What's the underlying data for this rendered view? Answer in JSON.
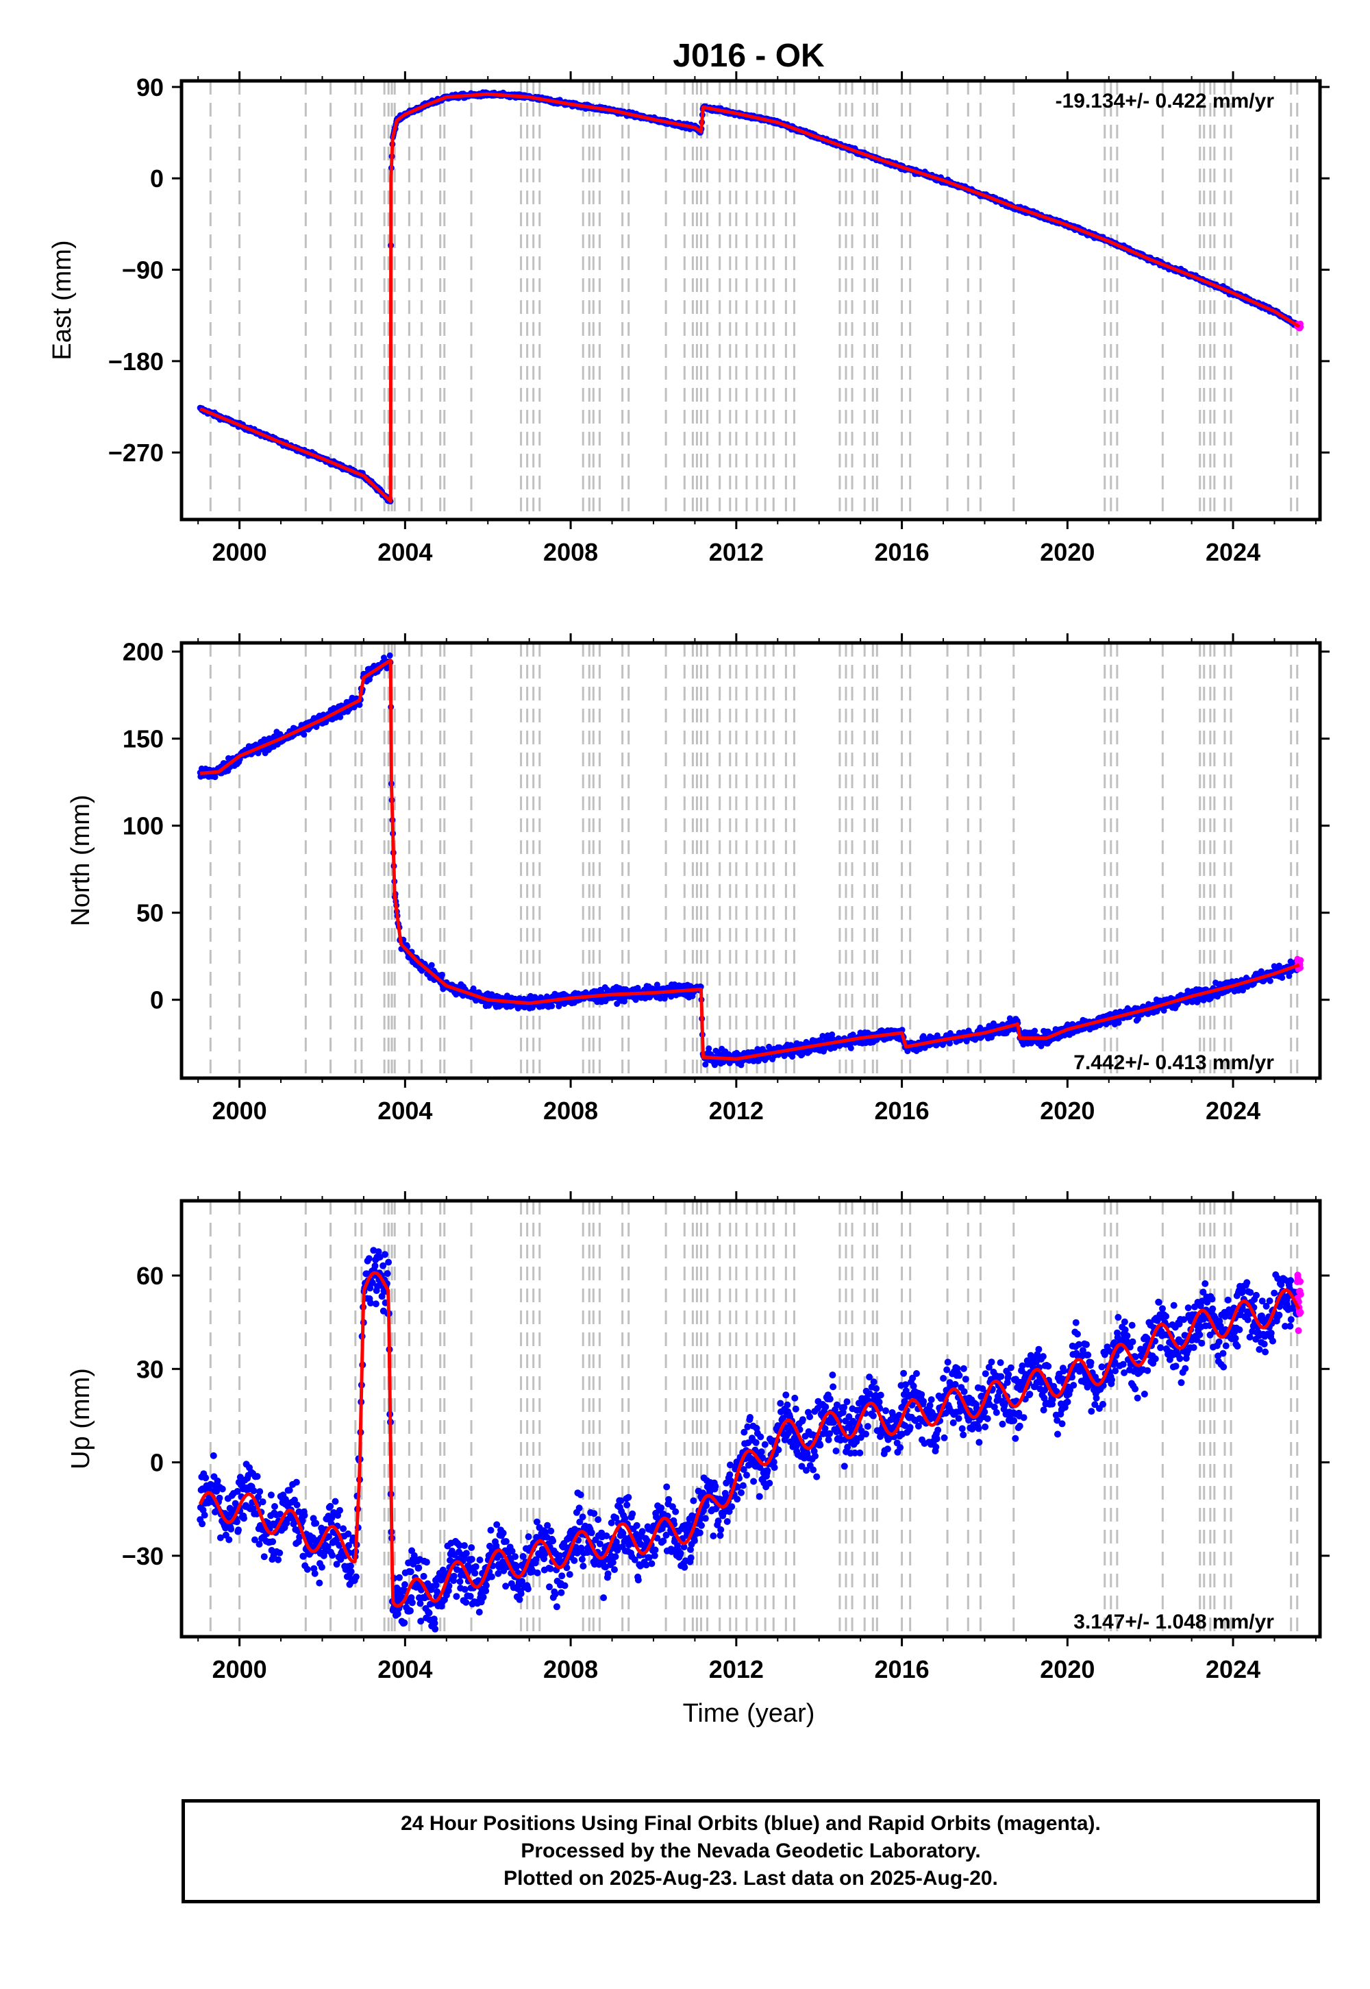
{
  "title": "J016 - OK",
  "xlabel": "Time (year)",
  "footer": {
    "line1": "24 Hour Positions Using Final Orbits (blue) and Rapid Orbits (magenta).",
    "line2": "Processed by the Nevada Geodetic Laboratory.",
    "line3": "Plotted on 2025-Aug-23. Last data on 2025-Aug-20."
  },
  "colors": {
    "final_orbits": "#0000ff",
    "rapid_orbits": "#ff00ff",
    "model": "#ff0000",
    "event_lines": "#c0c0c0"
  },
  "chart_data": [
    {
      "type": "scatter",
      "component": "east",
      "ylabel": "East (mm)",
      "rate_text": "-19.134+/- 0.422 mm/yr",
      "xlim": [
        1998.6,
        2026.1
      ],
      "ylim": [
        -336,
        96
      ],
      "xticks": [
        2000,
        2004,
        2008,
        2012,
        2016,
        2020,
        2024
      ],
      "yticks": [
        90,
        0,
        -90,
        -180,
        -270
      ],
      "grid": false,
      "series": [
        {
          "role": "model",
          "type": "line",
          "color": "#ff0000",
          "x": [
            1999.05,
            2000.0,
            2001.0,
            2002.0,
            2003.0,
            2003.65,
            2003.66,
            2003.7,
            2003.8,
            2004.0,
            2004.5,
            2005.0,
            2006.0,
            2007.0,
            2008.0,
            2009.0,
            2010.0,
            2011.0,
            2011.15,
            2011.2,
            2012.0,
            2013.0,
            2014.0,
            2015.0,
            2016.0,
            2017.0,
            2018.0,
            2018.7,
            2019.0,
            2020.0,
            2021.0,
            2022.0,
            2023.0,
            2024.0,
            2025.0,
            2025.6
          ],
          "y": [
            -227,
            -243,
            -260,
            -276,
            -293,
            -318,
            0,
            40,
            57,
            63,
            72,
            80,
            83,
            80,
            73,
            67,
            58,
            50,
            46,
            70,
            64,
            55,
            40,
            25,
            11,
            -2,
            -17,
            -28,
            -32,
            -46,
            -62,
            -80,
            -96,
            -113,
            -131,
            -146
          ]
        }
      ]
    },
    {
      "type": "scatter",
      "component": "north",
      "ylabel": "North (mm)",
      "rate_text": "7.442+/- 0.413 mm/yr",
      "xlim": [
        1998.6,
        2026.1
      ],
      "ylim": [
        -45,
        205
      ],
      "xticks": [
        2000,
        2004,
        2008,
        2012,
        2016,
        2020,
        2024
      ],
      "yticks": [
        200,
        150,
        100,
        50,
        0
      ],
      "grid": false,
      "series": [
        {
          "role": "model",
          "type": "line",
          "color": "#ff0000",
          "x": [
            1999.05,
            1999.5,
            2000.0,
            2001.0,
            2002.0,
            2002.9,
            2003.0,
            2003.65,
            2003.67,
            2003.75,
            2003.9,
            2004.3,
            2005.0,
            2006.0,
            2007.0,
            2008.0,
            2009.0,
            2010.0,
            2011.15,
            2011.2,
            2012.0,
            2013.0,
            2014.0,
            2015.0,
            2016.0,
            2016.1,
            2017.0,
            2018.0,
            2018.8,
            2018.85,
            2019.5,
            2020.0,
            2021.0,
            2022.0,
            2023.0,
            2024.0,
            2025.0,
            2025.6
          ],
          "y": [
            130,
            131,
            140,
            150,
            161,
            172,
            185,
            195,
            125,
            60,
            32,
            22,
            8,
            0,
            -2,
            1,
            3,
            4,
            6,
            -33,
            -34,
            -30,
            -26,
            -22,
            -19,
            -27,
            -23,
            -19,
            -14,
            -22,
            -22,
            -17,
            -11,
            -5,
            2,
            8,
            15,
            20
          ]
        }
      ]
    },
    {
      "type": "scatter",
      "component": "up",
      "ylabel": "Up (mm)",
      "rate_text": "3.147+/- 1.048 mm/yr",
      "xlim": [
        1998.6,
        2026.1
      ],
      "ylim": [
        -56,
        84
      ],
      "xticks": [
        2000,
        2004,
        2008,
        2012,
        2016,
        2020,
        2024
      ],
      "yticks": [
        60,
        30,
        0,
        -30
      ],
      "grid": false,
      "series": [
        {
          "role": "model",
          "type": "line",
          "color": "#ff0000",
          "x": [
            1999.05,
            2000.0,
            2001.0,
            2002.0,
            2002.8,
            2002.9,
            2003.0,
            2003.3,
            2003.6,
            2003.7,
            2004.0,
            2005.0,
            2006.0,
            2007.0,
            2008.0,
            2009.0,
            2010.0,
            2011.0,
            2012.0,
            2013.0,
            2014.0,
            2015.0,
            2016.0,
            2017.0,
            2018.0,
            2019.0,
            2020.0,
            2021.0,
            2022.0,
            2023.0,
            2024.0,
            2025.0,
            2025.6
          ],
          "y": [
            -15,
            -14,
            -19,
            -25,
            -27,
            -1,
            55,
            56,
            58,
            -40,
            -44,
            -38,
            -34,
            -31,
            -28,
            -25,
            -24,
            -20,
            -5,
            8,
            10,
            14,
            14,
            18,
            20,
            24,
            27,
            31,
            38,
            43,
            46,
            49,
            52
          ]
        }
      ]
    }
  ]
}
